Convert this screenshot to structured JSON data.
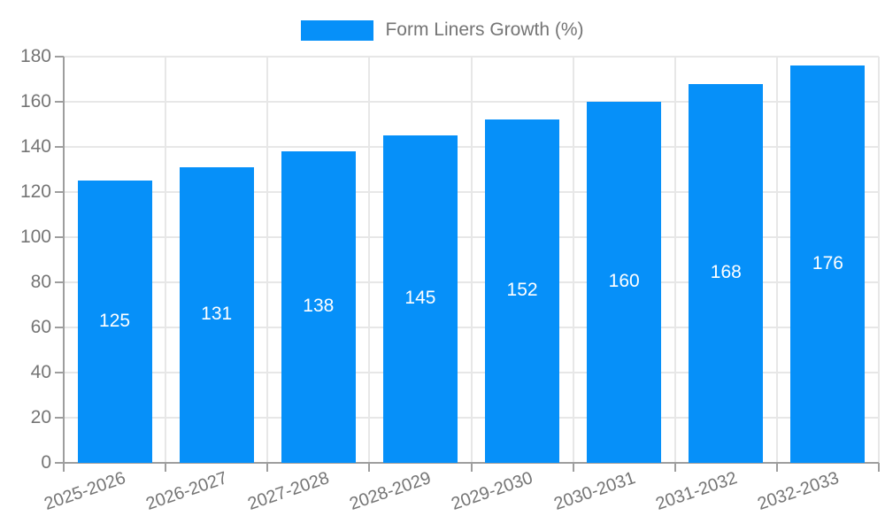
{
  "legend": {
    "label": "Form Liners Growth (%)"
  },
  "chart_data": {
    "type": "bar",
    "title": "",
    "series_name": "Form Liners Growth (%)",
    "categories": [
      "2025-2026",
      "2026-2027",
      "2027-2028",
      "2028-2029",
      "2029-2030",
      "2030-2031",
      "2031-2032",
      "2032-2033"
    ],
    "values": [
      125,
      131,
      138,
      145,
      152,
      160,
      168,
      176
    ],
    "data_labels_visible": true,
    "xlabel": "",
    "ylabel": "",
    "ylim": [
      0,
      180
    ],
    "yticks": [
      0,
      20,
      40,
      60,
      80,
      100,
      120,
      140,
      160,
      180
    ],
    "grid": true,
    "legend_position": "top-center",
    "colors": {
      "bar": "#0690F9",
      "bar_label_text": "#ffffff",
      "axis": "#9E9E9E",
      "grid": "#E7E7E7",
      "tick_text": "#757575"
    }
  }
}
